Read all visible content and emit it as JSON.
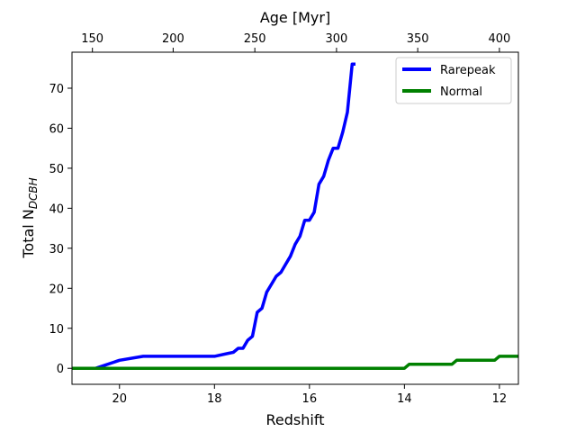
{
  "chart_data": {
    "type": "line",
    "xlabel": "Redshift",
    "ylabel_main": "Total N",
    "ylabel_sub": "DCBH",
    "top_xlabel": "Age [Myr]",
    "xlim": [
      21.0,
      11.6
    ],
    "ylim": [
      -4,
      79
    ],
    "x_ticks": [
      20,
      18,
      16,
      14,
      12
    ],
    "x_tick_labels": [
      "20",
      "18",
      "16",
      "14",
      "12"
    ],
    "y_ticks": [
      0,
      10,
      20,
      30,
      40,
      50,
      60,
      70
    ],
    "y_tick_labels": [
      "0",
      "10",
      "20",
      "30",
      "40",
      "50",
      "60",
      "70"
    ],
    "top_ticks": [
      {
        "label": "150",
        "redshift": 20.57
      },
      {
        "label": "200",
        "redshift": 18.87
      },
      {
        "label": "250",
        "redshift": 17.15
      },
      {
        "label": "300",
        "redshift": 15.43
      },
      {
        "label": "350",
        "redshift": 13.72
      },
      {
        "label": "400",
        "redshift": 12.0
      }
    ],
    "grid": false,
    "legend_position": "top-right",
    "series": [
      {
        "name": "Rarepeak",
        "color": "#0000ff",
        "x": [
          21.0,
          20.5,
          20.0,
          19.5,
          19.0,
          18.5,
          18.0,
          17.6,
          17.5,
          17.4,
          17.3,
          17.2,
          17.1,
          17.0,
          16.9,
          16.8,
          16.7,
          16.6,
          16.5,
          16.4,
          16.3,
          16.2,
          16.1,
          16.0,
          15.9,
          15.8,
          15.7,
          15.6,
          15.5,
          15.4,
          15.3,
          15.2,
          15.1,
          15.03
        ],
        "y": [
          0,
          0,
          2,
          3,
          3,
          3,
          3,
          4,
          5,
          5,
          7,
          8,
          14,
          15,
          19,
          21,
          23,
          24,
          26,
          28,
          31,
          33,
          37,
          37,
          39,
          46,
          48,
          52,
          55,
          55,
          59,
          64,
          76,
          76
        ]
      },
      {
        "name": "Normal",
        "color": "#008000",
        "x": [
          21.0,
          14.0,
          13.9,
          13.0,
          12.9,
          12.1,
          12.0,
          11.6
        ],
        "y": [
          0,
          0,
          1,
          1,
          2,
          2,
          3,
          3
        ]
      }
    ]
  }
}
